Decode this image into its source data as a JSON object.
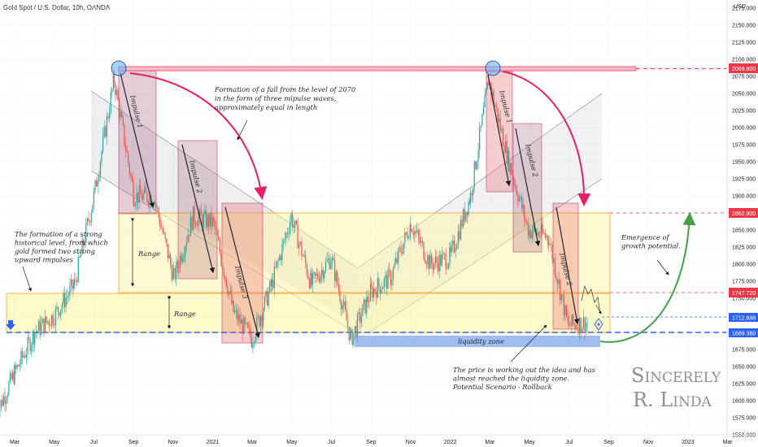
{
  "header": {
    "title": "Gold Spot / U.S. Dollar, 10h, OANDA",
    "currency": "USD"
  },
  "signature": {
    "line1": "Sincerely",
    "line2": "R. Linda"
  },
  "annotations": {
    "fall": [
      "Formation of a fall from the level of 2070",
      "in the form of three mipulse waves,",
      "approximately equal in length"
    ],
    "historical": [
      "The formation of a strong",
      "historical level, from which",
      "gold formed two strong",
      "upward impulses"
    ],
    "growth": [
      "Emergence of",
      "growth potential."
    ],
    "price": [
      "The price is working out the idea and has",
      "almost reached the liquidity zone.",
      "Potential Scenario - Rollback"
    ],
    "range_upper": "Range",
    "range_lower": "Range",
    "liquidity": "liquidity zone",
    "impulse1_left": "Impulse 1",
    "impulse2_left": "Impulse 2",
    "impulse3_left": "Impulse 3",
    "impulse1_right": "Impulse 1",
    "impulse2_right": "Impulse 2",
    "impulse2b_right": "Impulse 2"
  },
  "price_labels": {
    "top_level": "2069.800",
    "mid_level": "1862.900",
    "range_top": "1747.720",
    "current": "1712.698",
    "bottom_level": "1689.380"
  },
  "colors": {
    "bull": "#26a69a",
    "bear": "#ef5350",
    "resistance": "#f23645",
    "support": "#2962ff",
    "range_fill": "#fff59d",
    "arrow_red": "#e91e63",
    "arrow_green": "#43a047"
  },
  "chart_data": {
    "type": "candlestick",
    "ylim": [
      1550,
      2175
    ],
    "y_ticks": [
      "2175.000",
      "2150.000",
      "2125.000",
      "2100.000",
      "2075.000",
      "2050.000",
      "2025.000",
      "2000.000",
      "1975.000",
      "1950.000",
      "1925.000",
      "1900.000",
      "1875.000",
      "1850.000",
      "1825.000",
      "1800.000",
      "1775.000",
      "1750.000",
      "1725.000",
      "1700.000",
      "1675.000",
      "1650.000",
      "1625.000",
      "1600.000",
      "1575.000",
      "1550.000"
    ],
    "x_ticks": [
      "Mar",
      "May",
      "Jul",
      "Sep",
      "Nov",
      "2021",
      "Mar",
      "May",
      "Jul",
      "Sep",
      "Nov",
      "2022",
      "Mar",
      "May",
      "Jul",
      "Sep",
      "Nov",
      "2023",
      "Mar"
    ],
    "levels": [
      2069.8,
      1862.9,
      1747.72,
      1712.698,
      1689.38
    ],
    "price_path": [
      {
        "date": "2020-02",
        "price": 1580
      },
      {
        "date": "2020-03",
        "price": 1640
      },
      {
        "date": "2020-04",
        "price": 1700
      },
      {
        "date": "2020-05",
        "price": 1725
      },
      {
        "date": "2020-06",
        "price": 1770
      },
      {
        "date": "2020-07",
        "price": 1900
      },
      {
        "date": "2020-08",
        "price": 2070
      },
      {
        "date": "2020-09",
        "price": 1900
      },
      {
        "date": "2020-10",
        "price": 1900
      },
      {
        "date": "2020-11",
        "price": 1780
      },
      {
        "date": "2020-12",
        "price": 1870
      },
      {
        "date": "2021-01",
        "price": 1860
      },
      {
        "date": "2021-02",
        "price": 1730
      },
      {
        "date": "2021-03",
        "price": 1690
      },
      {
        "date": "2021-04",
        "price": 1770
      },
      {
        "date": "2021-05",
        "price": 1870
      },
      {
        "date": "2021-06",
        "price": 1770
      },
      {
        "date": "2021-07",
        "price": 1810
      },
      {
        "date": "2021-08",
        "price": 1690
      },
      {
        "date": "2021-09",
        "price": 1760
      },
      {
        "date": "2021-10",
        "price": 1780
      },
      {
        "date": "2021-11",
        "price": 1860
      },
      {
        "date": "2021-12",
        "price": 1800
      },
      {
        "date": "2022-01",
        "price": 1810
      },
      {
        "date": "2022-02",
        "price": 1900
      },
      {
        "date": "2022-03",
        "price": 2070
      },
      {
        "date": "2022-04",
        "price": 1950
      },
      {
        "date": "2022-05",
        "price": 1850
      },
      {
        "date": "2022-06",
        "price": 1840
      },
      {
        "date": "2022-07",
        "price": 1710
      },
      {
        "date": "2022-08",
        "price": 1715
      }
    ]
  }
}
